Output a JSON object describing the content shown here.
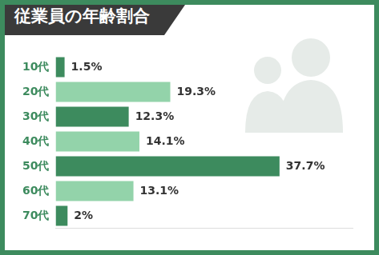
{
  "chart_data": {
    "type": "bar",
    "title": "従業員の年齢割合",
    "orientation": "horizontal",
    "categories": [
      "10代",
      "20代",
      "30代",
      "40代",
      "50代",
      "60代",
      "70代"
    ],
    "values": [
      1.5,
      19.3,
      12.3,
      14.1,
      37.7,
      13.1,
      2
    ],
    "value_labels": [
      "1.5%",
      "19.3%",
      "12.3%",
      "14.1%",
      "37.7%",
      "13.1%",
      "2%"
    ],
    "colors": [
      "#3d8b5e",
      "#93d3aa",
      "#3d8b5e",
      "#93d3aa",
      "#3d8b5e",
      "#93d3aa",
      "#3d8b5e"
    ],
    "xlim": [
      0,
      50
    ],
    "data_labels": true,
    "grid": false,
    "tick_labels": "y"
  }
}
